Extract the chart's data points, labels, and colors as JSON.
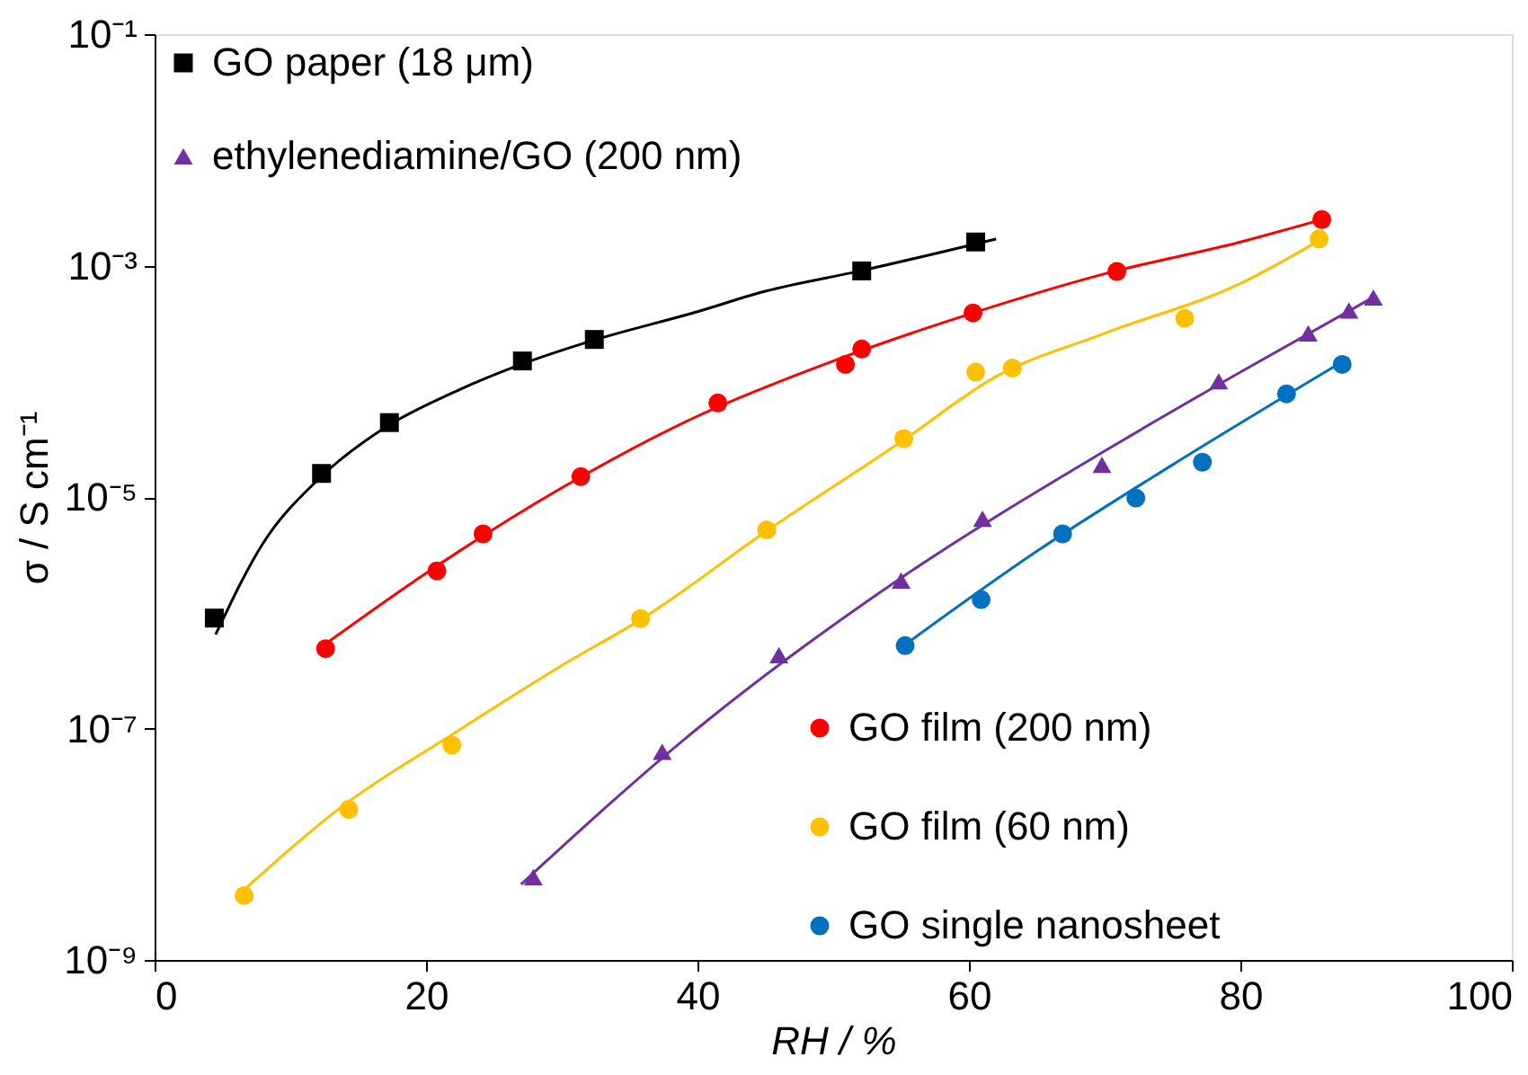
{
  "chart_data": {
    "type": "scatter",
    "xlabel": "RH / %",
    "ylabel": "σ / S cm⁻¹",
    "xlim": [
      0,
      100
    ],
    "xticks": [
      0,
      20,
      40,
      60,
      80,
      100
    ],
    "ylim": [
      1e-09,
      0.1
    ],
    "yticks": [
      {
        "value": 1e-09,
        "label": "10⁻⁹"
      },
      {
        "value": 1e-07,
        "label": "10⁻⁷"
      },
      {
        "value": 1e-05,
        "label": "10⁻⁵"
      },
      {
        "value": 0.001,
        "label": "10⁻³"
      },
      {
        "value": 0.1,
        "label": "10⁻¹"
      }
    ],
    "log": "y",
    "grid": false,
    "legend": "top left",
    "series": [
      {
        "name": "GO paper (18 μm)",
        "color": "#000000",
        "marker": "square",
        "x": [
          4.4,
          12.3,
          17.3,
          27.1,
          32.4,
          52.1,
          60.5
        ],
        "values": [
          9e-07,
          1.6e-05,
          4.4e-05,
          0.00015,
          0.00023,
          0.0009,
          0.0016
        ]
      },
      {
        "name": "ethylenediamine/GO (200 nm)",
        "color": "#7030a0",
        "marker": "triangle",
        "x": [
          27.9,
          37.4,
          46,
          55,
          61,
          69.8,
          78.4,
          85,
          88,
          89.8
        ],
        "values": [
          5.2e-09,
          6.3e-08,
          4.3e-07,
          1.9e-06,
          6.5e-06,
          1.9e-05,
          0.0001,
          0.00026,
          0.00041,
          0.00053
        ]
      },
      {
        "name": "GO film (200 nm)",
        "color": "#ff0000",
        "marker": "circle",
        "x": [
          12.6,
          20.8,
          24.2,
          31.4,
          41.5,
          50.9,
          52.1,
          60.3,
          70.9,
          86
        ],
        "values": [
          4.9e-07,
          2.3e-06,
          4.8e-06,
          1.5e-05,
          6.5e-05,
          0.00014,
          0.00019,
          0.00039,
          0.00089,
          0.0025
        ]
      },
      {
        "name": "GO film (60 nm)",
        "color": "#ffc000",
        "marker": "circle",
        "x": [
          6.6,
          14.3,
          21.9,
          35.8,
          45.1,
          55.2,
          60.5,
          63.2,
          75.9,
          85.8
        ],
        "values": [
          3.6e-09,
          2e-08,
          7.2e-08,
          8.9e-07,
          5.2e-06,
          3.2e-05,
          0.00012,
          0.00013,
          0.00035,
          0.0017
        ]
      },
      {
        "name": "GO single nanosheet",
        "color": "#0070c0",
        "marker": "circle",
        "x": [
          55.3,
          60.9,
          66.9,
          72.3,
          77.2,
          83.4,
          87.5
        ],
        "values": [
          5.2e-07,
          1.3e-06,
          4.8e-06,
          9.8e-06,
          2e-05,
          7.8e-05,
          0.00014
        ]
      },
      {
        "type": "line",
        "color": "#000000",
        "x": [
          4.5,
          8,
          12,
          17,
          22,
          27,
          32,
          40,
          45,
          52,
          62
        ],
        "values": [
          6.5e-07,
          4e-06,
          1.4e-05,
          4e-05,
          8e-05,
          0.00014,
          0.00022,
          0.0004,
          0.0006,
          0.0009,
          0.0017
        ]
      },
      {
        "type": "line",
        "color": "#7030a0",
        "x": [
          27,
          40,
          55,
          70,
          80,
          90
        ],
        "values": [
          4.5e-09,
          1e-07,
          2e-06,
          2.5e-05,
          0.00012,
          0.00055
        ]
      },
      {
        "type": "line",
        "color": "#ff0000",
        "x": [
          12,
          20,
          30,
          40,
          50,
          60,
          70,
          80,
          86
        ],
        "values": [
          4.8e-07,
          2.2e-06,
          1.2e-05,
          5e-05,
          0.00015,
          0.00038,
          0.00085,
          0.0016,
          0.0025
        ]
      },
      {
        "type": "line",
        "color": "#ffc000",
        "x": [
          6,
          14,
          22,
          30,
          36,
          45,
          55,
          62,
          70,
          80,
          86
        ],
        "values": [
          3.5e-09,
          2.2e-08,
          9e-08,
          3.5e-07,
          9e-07,
          5e-06,
          3e-05,
          0.00011,
          0.00026,
          0.0007,
          0.0017
        ]
      },
      {
        "type": "line",
        "color": "#0070c0",
        "x": [
          55,
          65,
          75,
          88
        ],
        "values": [
          5e-07,
          3.4e-06,
          1.9e-05,
          0.00016
        ]
      }
    ]
  }
}
